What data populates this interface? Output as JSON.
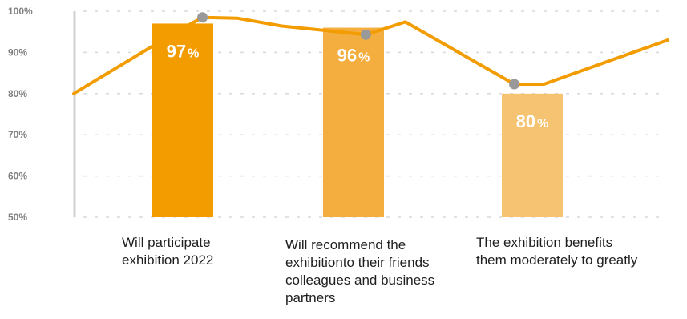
{
  "chart_data": {
    "type": "bar",
    "categories": [
      "Will participate\nexhibition 2022",
      "Will recommend the\nexhibitionto their friends\ncolleagues and business\npartners",
      "The exhibition benefits\nthem moderately to greatly"
    ],
    "values": [
      97,
      96,
      80
    ],
    "data_labels": [
      "97",
      "96",
      "80"
    ],
    "data_label_suffix": "%",
    "bar_colors": [
      "#f39c00",
      "#f3ae3f",
      "#f6c372"
    ],
    "ylim": [
      50,
      100
    ],
    "yticks": [
      50,
      60,
      70,
      80,
      90,
      100
    ],
    "ytick_labels": [
      "50%",
      "60%",
      "70%",
      "80%",
      "90%",
      "100%"
    ],
    "grid": true,
    "grid_style": "dashed",
    "overlay_line": {
      "color": "#f39c00",
      "marker_color": "#999999",
      "points": [
        {
          "x": 0.0,
          "y": 80.0,
          "marker": false
        },
        {
          "x": 1.0,
          "y": 94.5,
          "marker": false
        },
        {
          "x": 1.3,
          "y": 98.5,
          "marker": true
        },
        {
          "x": 1.65,
          "y": 98.3,
          "marker": false
        },
        {
          "x": 2.1,
          "y": 96.4,
          "marker": false
        },
        {
          "x": 2.95,
          "y": 94.3,
          "marker": true
        },
        {
          "x": 3.35,
          "y": 97.4,
          "marker": false
        },
        {
          "x": 4.45,
          "y": 82.3,
          "marker": true
        },
        {
          "x": 4.75,
          "y": 82.3,
          "marker": false
        },
        {
          "x": 6.0,
          "y": 93.0,
          "marker": false
        }
      ]
    },
    "title": "",
    "xlabel": "",
    "ylabel": ""
  }
}
